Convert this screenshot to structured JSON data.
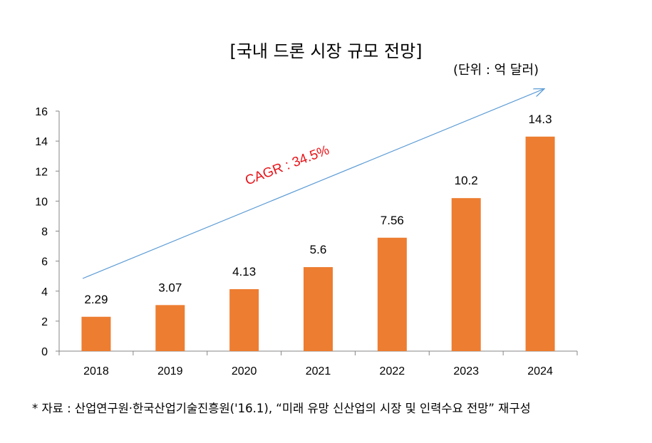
{
  "title": "[국내 드론 시장 규모 전망]",
  "unit": "(단위 : 억 달러)",
  "source": "* 자료 : 산업연구원·한국산업기술진흥원('16.1), “미래 유망 신산업의 시장 및 인력수요 전망” 재구성",
  "chart_data": {
    "type": "bar",
    "categories": [
      "2018",
      "2019",
      "2020",
      "2021",
      "2022",
      "2023",
      "2024"
    ],
    "values": [
      2.29,
      3.07,
      4.13,
      5.6,
      7.56,
      10.2,
      14.3
    ],
    "data_labels": [
      "2.29",
      "3.07",
      "4.13",
      "5.6",
      "7.56",
      "10.2",
      "14.3"
    ],
    "ylim": [
      0,
      16
    ],
    "yticks": [
      0,
      2,
      4,
      6,
      8,
      10,
      12,
      14,
      16
    ],
    "annotation": "CAGR : 34.5%",
    "bar_color": "#ed7d31",
    "arrow_color": "#5b9bd5",
    "annotation_color": "#e8141a",
    "grid": false
  }
}
